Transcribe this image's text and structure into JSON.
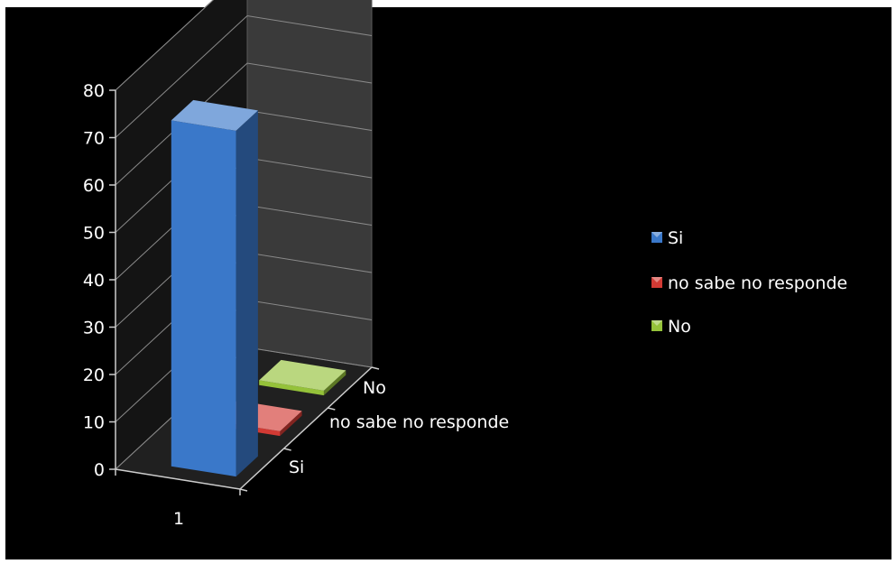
{
  "chart_data": {
    "type": "bar",
    "variant": "3d-column-depth",
    "categories": [
      "1"
    ],
    "series": [
      {
        "name": "Si",
        "values": [
          73
        ],
        "color": "#3a78c9"
      },
      {
        "name": "no sabe no responde",
        "values": [
          1
        ],
        "color": "#d23a34"
      },
      {
        "name": "No",
        "values": [
          1
        ],
        "color": "#95c23a"
      }
    ],
    "yticks": [
      0,
      10,
      20,
      30,
      40,
      50,
      60,
      70,
      80
    ],
    "ylim": [
      0,
      80
    ],
    "depth_labels": [
      "Si",
      "no sabe no responde",
      "No"
    ],
    "legend_position": "right",
    "grid": true,
    "background": "#000000"
  }
}
